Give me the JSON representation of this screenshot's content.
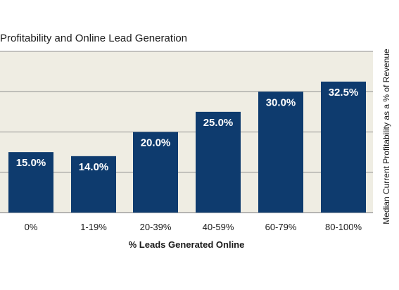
{
  "chart_data": {
    "type": "bar",
    "title": "Profitability and Online Lead Generation",
    "xlabel": "% Leads Generated Online",
    "ylabel": "Median Current Profitability as a % of Revenue",
    "categories": [
      "0%",
      "1-19%",
      "20-39%",
      "40-59%",
      "60-79%",
      "80-100%"
    ],
    "values": [
      15.0,
      14.0,
      20.0,
      25.0,
      30.0,
      32.5
    ],
    "data_labels": [
      "15.0%",
      "14.0%",
      "20.0%",
      "25.0%",
      "30.0%",
      "32.5%"
    ],
    "ylim": [
      0,
      40
    ],
    "grid": true,
    "legend": "none",
    "colors": {
      "bar": "#0e3b6e",
      "plot_background": "#efede3",
      "gridline": "#8f8f8f",
      "text": "#1a1a1a",
      "data_label": "#ffffff"
    }
  }
}
